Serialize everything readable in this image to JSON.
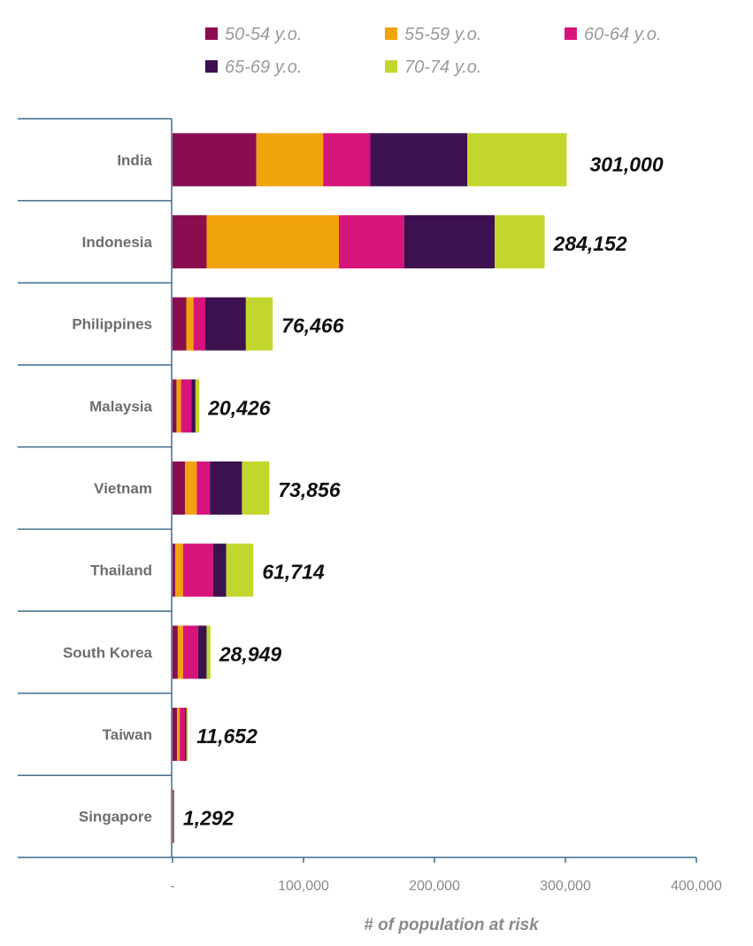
{
  "chart_data": {
    "type": "bar",
    "orientation": "horizontal",
    "stacked": true,
    "title": "",
    "xlabel": "# of population at risk",
    "ylabel": "",
    "xlim": [
      0,
      400000
    ],
    "x_ticks": [
      0,
      100000,
      200000,
      300000,
      400000
    ],
    "x_tick_labels": [
      "-",
      "100,000",
      "200,000",
      "300,000",
      "400,000"
    ],
    "grid": false,
    "legend_position": "top",
    "categories": [
      "India",
      "Indonesia",
      "Philippines",
      "Malaysia",
      "Vietnam",
      "Thailand",
      "South Korea",
      "Taiwan",
      "Singapore"
    ],
    "totals_labels": [
      "301,000",
      "284,152",
      "76,466",
      "20,426",
      "73,856",
      "61,714",
      "28,949",
      "11,652",
      "1,292"
    ],
    "series": [
      {
        "name": "50-54 y.o.",
        "color": "#8a0d4f",
        "values": [
          64000,
          26000,
          10500,
          3000,
          9500,
          2000,
          4000,
          3500,
          300
        ]
      },
      {
        "name": "55-59 y.o.",
        "color": "#f0a30a",
        "values": [
          51000,
          101000,
          5500,
          3500,
          9000,
          6000,
          4000,
          2000,
          200
        ]
      },
      {
        "name": "60-64 y.o.",
        "color": "#d6147a",
        "values": [
          36000,
          50000,
          9000,
          8000,
          10000,
          23000,
          11500,
          4000,
          250
        ]
      },
      {
        "name": "65-69 y.o.",
        "color": "#3d1150",
        "values": [
          74000,
          69000,
          31000,
          3000,
          24500,
          10000,
          6500,
          1000,
          300
        ]
      },
      {
        "name": "70-74 y.o.",
        "color": "#c3d62d",
        "values": [
          76000,
          38152,
          20466,
          2926,
          20856,
          20714,
          2949,
          1152,
          242
        ]
      }
    ]
  }
}
